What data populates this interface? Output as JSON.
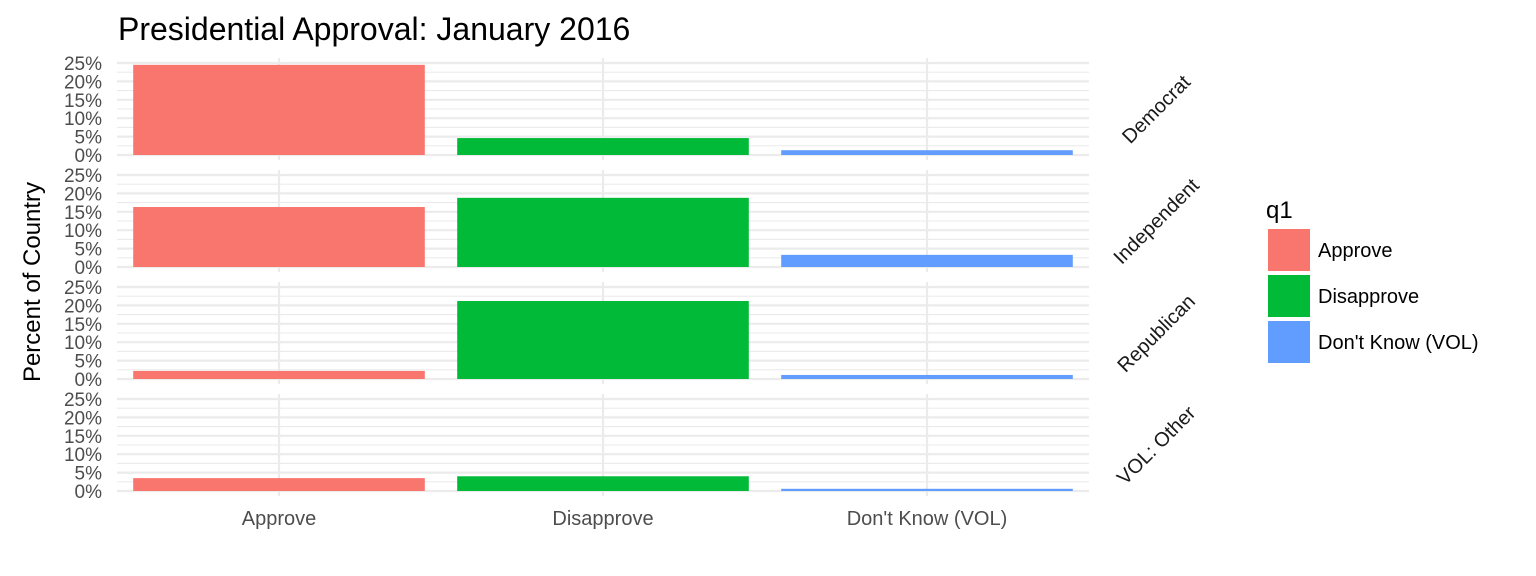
{
  "chart_data": {
    "type": "bar",
    "title": "Presidential Approval: January 2016",
    "xlabel": "",
    "ylabel": "Percent of Country",
    "categories": [
      "Approve",
      "Disapprove",
      "Don't Know (VOL)"
    ],
    "ylim": [
      0,
      25
    ],
    "yticks": [
      "0%",
      "5%",
      "10%",
      "15%",
      "20%",
      "25%"
    ],
    "grid": true,
    "legend": {
      "title": "q1",
      "position": "right",
      "entries": [
        "Approve",
        "Disapprove",
        "Don't Know (VOL)"
      ]
    },
    "colors": [
      "#F8766D",
      "#00BA38",
      "#619CFF"
    ],
    "panels": [
      {
        "name": "Democrat",
        "values": [
          24.5,
          4.6,
          1.3
        ]
      },
      {
        "name": "Independent",
        "values": [
          16.3,
          18.8,
          3.3
        ]
      },
      {
        "name": "Republican",
        "values": [
          2.2,
          21.2,
          1.1
        ]
      },
      {
        "name": "VOL: Other",
        "values": [
          3.5,
          4.0,
          0.6
        ]
      }
    ]
  }
}
